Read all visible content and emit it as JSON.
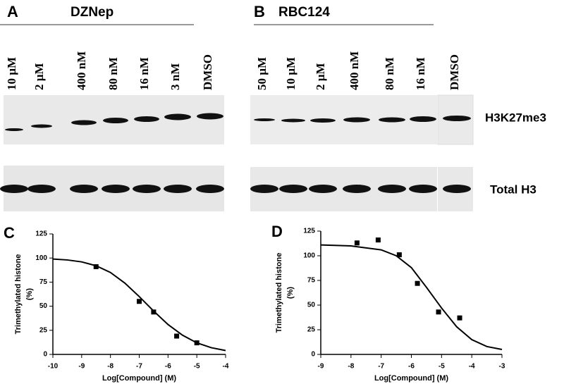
{
  "blots": [
    {
      "panel": "A",
      "title": "DZNep",
      "lanes": [
        "10 µM",
        "2 µM",
        "400 nM",
        "80 nM",
        "16 nM",
        "3 nM",
        "DMSO"
      ]
    },
    {
      "panel": "B",
      "title": "RBC124",
      "lanes": [
        "50 µM",
        "10 µM",
        "2 µM",
        "400 nM",
        "80 nM",
        "16 nM",
        "DMSO"
      ]
    }
  ],
  "blot_rows": [
    "H3K27me3",
    "Total H3"
  ],
  "chart_data": [
    {
      "type": "scatter",
      "panel": "C",
      "xlabel": "Log[Compound] (M)",
      "ylabel": [
        "Trimethylated histone",
        "(%)"
      ],
      "x": [
        -8.5,
        -7,
        -6.5,
        -5.7,
        -5
      ],
      "values": [
        91,
        55,
        44,
        19,
        12
      ],
      "curve": {
        "x": [
          -10,
          -9.5,
          -9,
          -8.5,
          -8,
          -7.5,
          -7,
          -6.5,
          -6,
          -5.5,
          -5,
          -4.5,
          -4
        ],
        "values": [
          99,
          98,
          96,
          92,
          85,
          74,
          60,
          45,
          31,
          20,
          12,
          7,
          4
        ]
      },
      "color": "#000000",
      "xlim": [
        -10,
        -4
      ],
      "xticks": [
        -10,
        -9,
        -8,
        -7,
        -6,
        -5,
        -4
      ],
      "ylim": [
        0,
        125
      ],
      "yticks": [
        0,
        25,
        50,
        75,
        100,
        125
      ]
    },
    {
      "type": "scatter",
      "panel": "D",
      "xlabel": "Log[Compound] (M)",
      "ylabel": [
        "Trimethylated histone",
        "(%)"
      ],
      "x": [
        -7.8,
        -7.1,
        -6.4,
        -5.8,
        -5.1,
        -4.4
      ],
      "values": [
        113,
        116,
        101,
        72,
        43,
        37
      ],
      "curve": {
        "x": [
          -9,
          -8,
          -7,
          -6.5,
          -6,
          -5.5,
          -5,
          -4.5,
          -4,
          -3.5,
          -3
        ],
        "values": [
          111,
          110,
          106,
          100,
          88,
          68,
          47,
          28,
          15,
          8,
          5
        ]
      },
      "color": "#000000",
      "xlim": [
        -9,
        -3
      ],
      "xticks": [
        -9,
        -8,
        -7,
        -6,
        -5,
        -4,
        -3
      ],
      "ylim": [
        0,
        125
      ],
      "yticks": [
        0,
        25,
        50,
        75,
        100,
        125
      ]
    }
  ]
}
